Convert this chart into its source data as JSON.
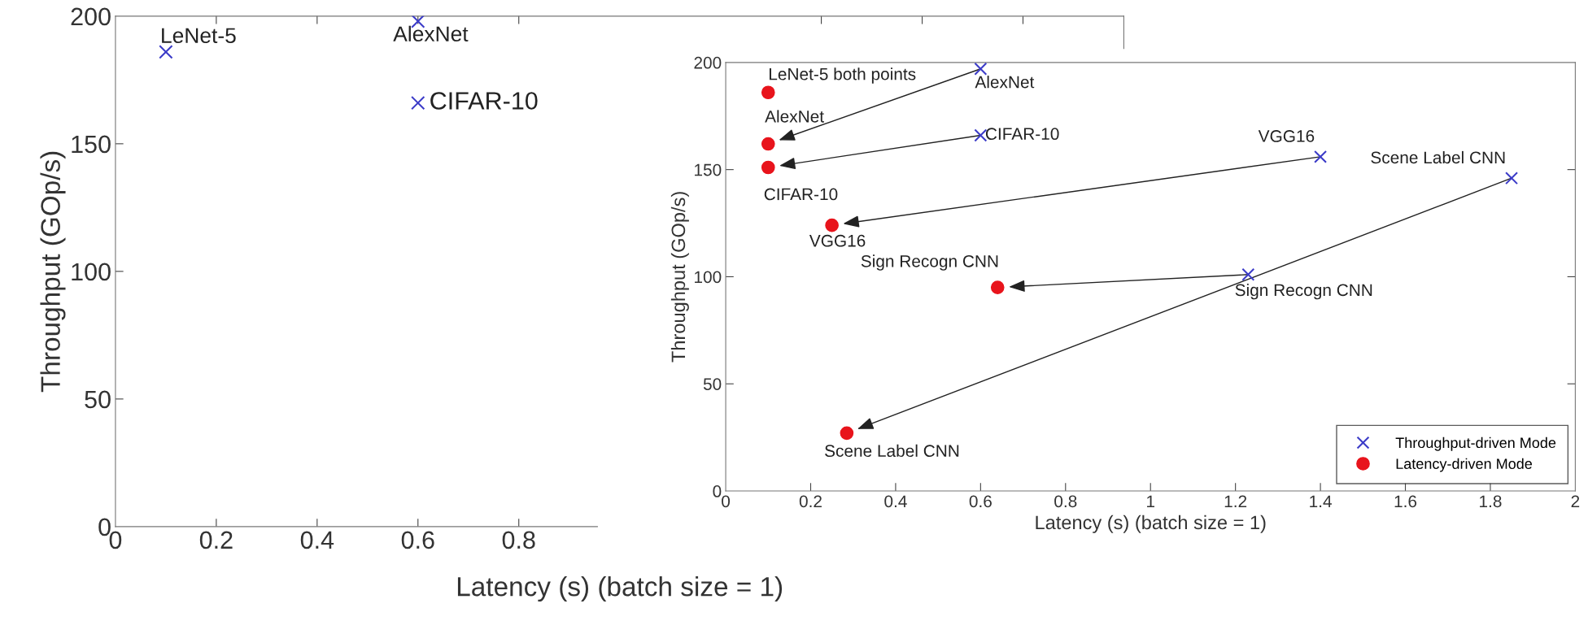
{
  "chart_data": [
    {
      "type": "scatter",
      "xlabel": "Latency (s) (batch size = 1)",
      "ylabel": "Throughput (GOp/s)",
      "xlim": [
        0,
        2
      ],
      "ylim": [
        0,
        200
      ],
      "xticks": [
        0,
        0.2,
        0.4,
        0.6,
        0.8,
        {
          "value": 1.4,
          "label": null
        },
        {
          "value": 1.6,
          "label": null
        },
        {
          "value": 1.8,
          "label": null
        },
        {
          "value": 2,
          "label": null
        }
      ],
      "yticks": [
        0,
        50,
        100,
        150,
        200
      ],
      "grid": false,
      "legend": false,
      "series": [
        {
          "color": "#3c3cc8",
          "marker": "cross",
          "x": [
            0.1,
            0.6,
            0.6
          ],
          "values": [
            186,
            198,
            166
          ]
        }
      ],
      "annotations": [
        {
          "text": "LeNet-5",
          "x": 0.1,
          "y": 186
        },
        {
          "text": "AlexNet",
          "x": 0.6,
          "y": 198
        },
        {
          "text": "CIFAR-10",
          "x": 0.6,
          "y": 166
        }
      ]
    },
    {
      "type": "scatter",
      "xlabel": "Latency (s) (batch size = 1)",
      "ylabel": "Throughput (GOp/s)",
      "xlim": [
        0,
        2
      ],
      "ylim": [
        0,
        200
      ],
      "xticks": [
        0,
        0.2,
        0.4,
        0.6,
        0.8,
        1,
        1.2,
        1.4,
        1.6,
        1.8,
        2
      ],
      "yticks": [
        0,
        50,
        100,
        150,
        200
      ],
      "grid": false,
      "legend": "bottom right",
      "series": [
        {
          "name": "Throughput-driven Mode",
          "color": "#3c3cc8",
          "marker": "cross",
          "x": [
            0.6,
            0.6,
            1.4,
            1.23,
            1.85,
            null
          ],
          "values": [
            197,
            166,
            156,
            101,
            146,
            null
          ]
        },
        {
          "name": "Latency-driven Mode",
          "color": "#e8141c",
          "marker": "circle",
          "x": [
            0.1,
            0.1,
            0.25,
            0.64,
            0.285,
            0.1
          ],
          "values": [
            162,
            151,
            124,
            95,
            27,
            186
          ]
        }
      ],
      "annotations": [
        {
          "text": "LeNet-5 both points",
          "x": 0.1,
          "y": 186
        },
        {
          "text": "AlexNet",
          "x": 0.6,
          "y": 197
        },
        {
          "text": "AlexNet",
          "x": 0.1,
          "y": 162
        },
        {
          "text": "CIFAR-10",
          "x": 0.6,
          "y": 166
        },
        {
          "text": "CIFAR-10",
          "x": 0.1,
          "y": 151
        },
        {
          "text": "VGG16",
          "x": 1.4,
          "y": 156
        },
        {
          "text": "VGG16",
          "x": 0.25,
          "y": 124
        },
        {
          "text": "Scene Label CNN",
          "x": 1.85,
          "y": 146
        },
        {
          "text": "Sign Recogn CNN",
          "x": 0.64,
          "y": 95
        },
        {
          "text": "Sign Recogn CNN",
          "x": 1.23,
          "y": 101
        },
        {
          "text": "Scene Label CNN",
          "x": 0.285,
          "y": 27
        }
      ]
    }
  ]
}
